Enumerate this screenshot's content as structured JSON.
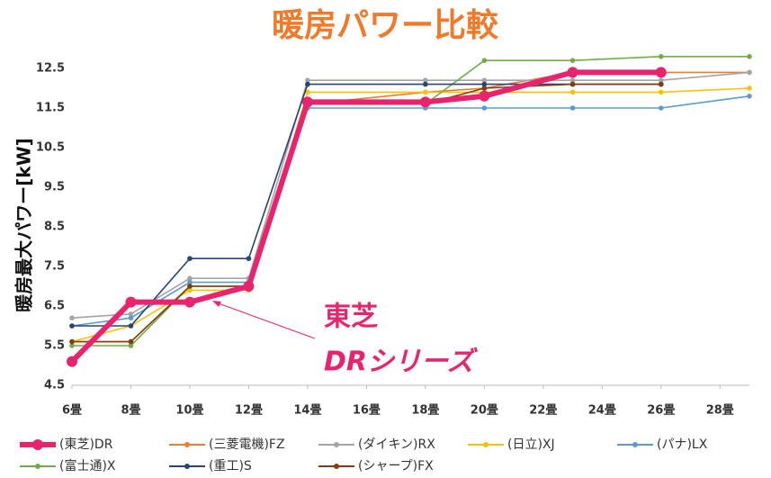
{
  "chart_data": {
    "type": "line",
    "title": "暖房パワー比較",
    "y_label": "暖房最大パワー[kW]",
    "annotation": [
      "東芝",
      "DRシリーズ"
    ],
    "x": [
      6,
      8,
      10,
      12,
      14,
      18,
      20,
      23,
      26,
      29
    ],
    "xlim": [
      6,
      29
    ],
    "xticks": [
      {
        "value": 6,
        "label": "6畳"
      },
      {
        "value": 8,
        "label": "8畳"
      },
      {
        "value": 10,
        "label": "10畳"
      },
      {
        "value": 12,
        "label": "12畳"
      },
      {
        "value": 14,
        "label": "14畳"
      },
      {
        "value": 16,
        "label": "16畳"
      },
      {
        "value": 18,
        "label": "18畳"
      },
      {
        "value": 20,
        "label": "20畳"
      },
      {
        "value": 22,
        "label": "22畳"
      },
      {
        "value": 24,
        "label": "24畳"
      },
      {
        "value": 26,
        "label": "26畳"
      },
      {
        "value": 28,
        "label": "28畳"
      }
    ],
    "ylim": [
      4.5,
      13
    ],
    "yticks": [
      4.5,
      5.5,
      6.5,
      7.5,
      8.5,
      9.5,
      10.5,
      11.5,
      12.5
    ],
    "grid": false,
    "legend": "bottom",
    "series": [
      {
        "name": "(東芝)DR",
        "color": "#e8246e",
        "values": [
          5.1,
          6.6,
          6.6,
          7.0,
          11.65,
          11.65,
          11.8,
          12.4,
          12.4,
          null
        ]
      },
      {
        "name": "(三菱電機)FZ",
        "color": "#ed7d31",
        "values": [
          5.6,
          5.6,
          7.0,
          7.0,
          11.6,
          11.9,
          12.0,
          12.4,
          12.4,
          12.4
        ]
      },
      {
        "name": "(ダイキン)RX",
        "color": "#a5a5a5",
        "values": [
          6.2,
          6.3,
          7.2,
          7.2,
          12.2,
          12.2,
          12.2,
          12.2,
          12.2,
          12.4
        ]
      },
      {
        "name": "(日立)XJ",
        "color": "#ffc000",
        "values": [
          5.6,
          6.0,
          6.9,
          6.9,
          11.9,
          11.9,
          11.9,
          11.9,
          11.9,
          12.0
        ]
      },
      {
        "name": "(パナ)LX",
        "color": "#5b9bd5",
        "values": [
          6.0,
          6.2,
          7.1,
          7.1,
          11.5,
          11.5,
          11.5,
          11.5,
          11.5,
          11.8
        ]
      },
      {
        "name": "(富士通)X",
        "color": "#70ad47",
        "values": [
          5.5,
          5.5,
          7.0,
          7.0,
          11.6,
          11.6,
          12.7,
          12.7,
          12.8,
          12.8
        ]
      },
      {
        "name": "(重工)S",
        "color": "#264478",
        "values": [
          6.0,
          6.0,
          7.7,
          7.7,
          12.1,
          12.1,
          12.1,
          12.1,
          12.1,
          null
        ]
      },
      {
        "name": "(シャープ)FX",
        "color": "#843c0c",
        "values": [
          5.6,
          5.6,
          7.0,
          7.0,
          11.6,
          11.6,
          12.0,
          12.1,
          12.1,
          null
        ]
      }
    ]
  }
}
